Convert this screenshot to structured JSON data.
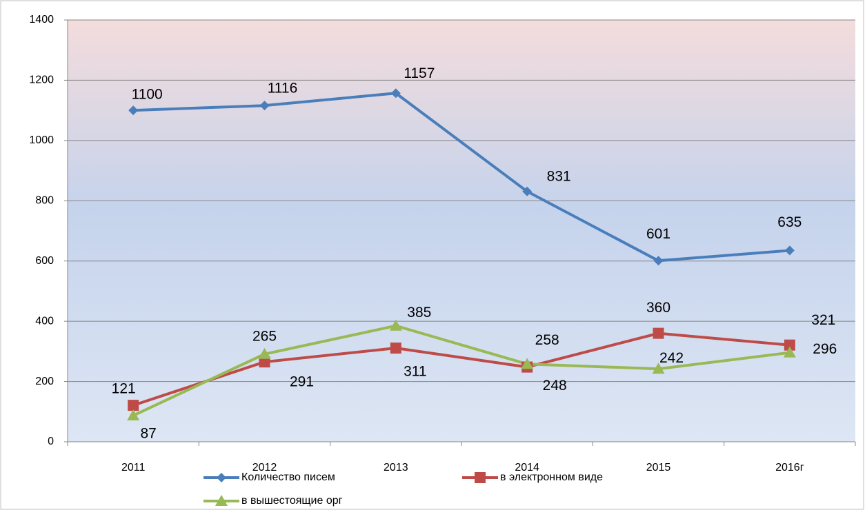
{
  "chart_data": {
    "type": "line",
    "categories": [
      "2011",
      "2012",
      "2013",
      "2014",
      "2015",
      "2016г"
    ],
    "series": [
      {
        "name": "Количество писем",
        "color": "#4a7ebb",
        "marker": "diamond",
        "values": [
          1100,
          1116,
          1157,
          831,
          601,
          635
        ]
      },
      {
        "name": "в электронном виде",
        "color": "#be4b48",
        "marker": "square",
        "values": [
          121,
          265,
          311,
          248,
          360,
          321
        ]
      },
      {
        "name": "в вышестоящие орг",
        "color": "#98b954",
        "marker": "triangle",
        "values": [
          87,
          291,
          385,
          258,
          242,
          296
        ]
      }
    ],
    "ylim": [
      0,
      1400
    ],
    "yticks": [
      0,
      200,
      400,
      600,
      800,
      1000,
      1200,
      1400
    ],
    "grid": true
  }
}
